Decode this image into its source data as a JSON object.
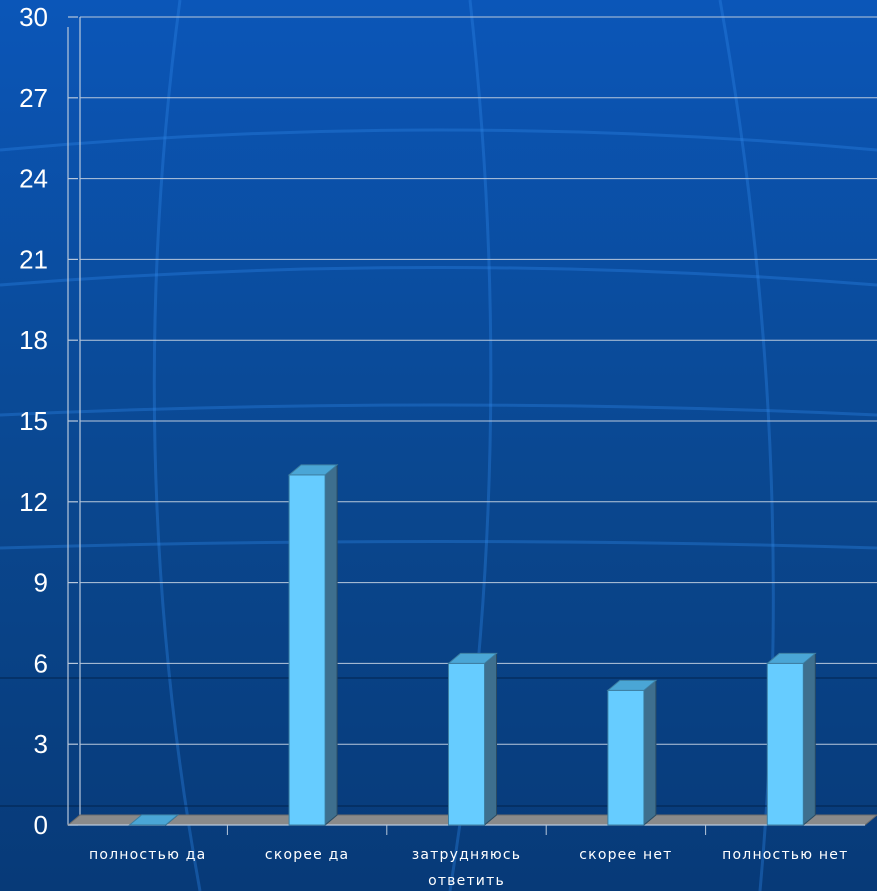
{
  "chart_data": {
    "type": "bar",
    "categories": [
      [
        "полностью да"
      ],
      [
        "скорее да"
      ],
      [
        "затрудняюсь",
        "ответить"
      ],
      [
        "скорее нет"
      ],
      [
        "полностью нет"
      ]
    ],
    "values": [
      0,
      13,
      6,
      5,
      6
    ],
    "ylim": [
      0,
      30
    ],
    "yticks": [
      0,
      3,
      6,
      9,
      12,
      15,
      18,
      21,
      24,
      27,
      30
    ],
    "grid": true,
    "legend": "none",
    "colors": {
      "background": "#0a3f86",
      "bar_front": "#66ccff",
      "bar_top": "#4aa6d6",
      "bar_side": "#3e6f8e",
      "floor": "#8a8a8a",
      "gridline": "#b8c8dc",
      "text": "#ffffff"
    }
  }
}
